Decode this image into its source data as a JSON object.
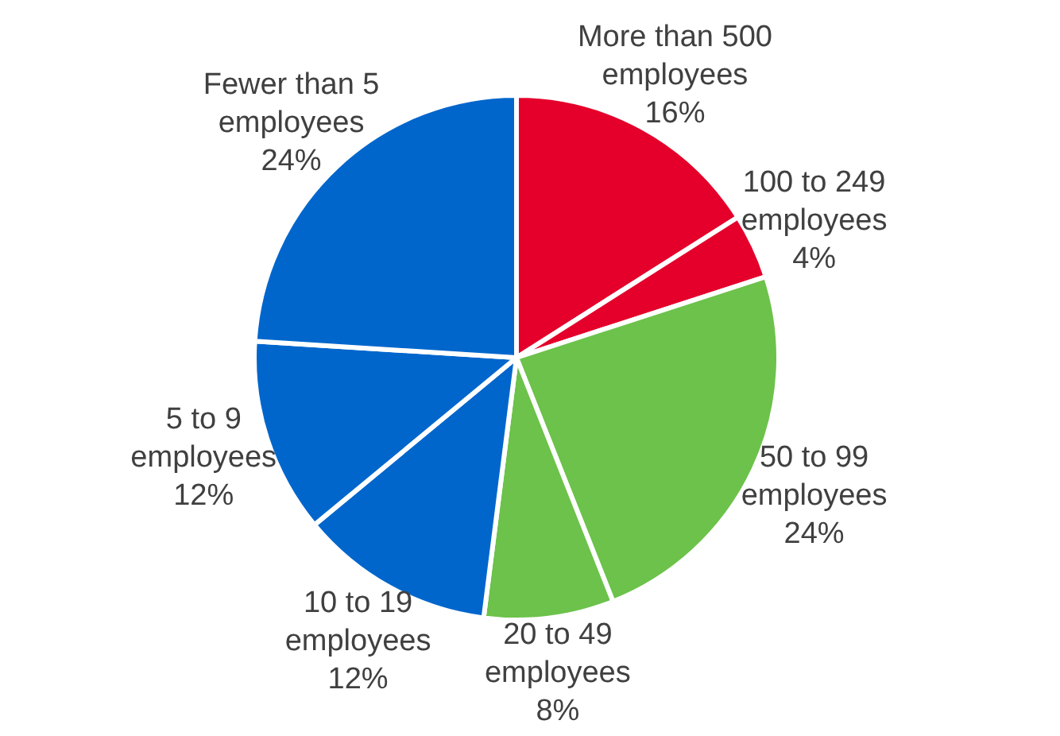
{
  "chart_data": {
    "type": "pie",
    "categories": [
      "More than 500 employees",
      "100 to 249 employees",
      "50 to 99 employees",
      "20 to 49 employees",
      "10 to 19 employees",
      "5 to 9 employees",
      "Fewer than 5 employees"
    ],
    "values": [
      16,
      4,
      24,
      8,
      12,
      12,
      24
    ],
    "colors": [
      "#e4002b",
      "#e4002b",
      "#6cc24a",
      "#6cc24a",
      "#0066cc",
      "#0066cc",
      "#0066cc"
    ],
    "value_labels": [
      "16%",
      "4%",
      "24%",
      "8%",
      "12%",
      "12%",
      "24%"
    ]
  }
}
